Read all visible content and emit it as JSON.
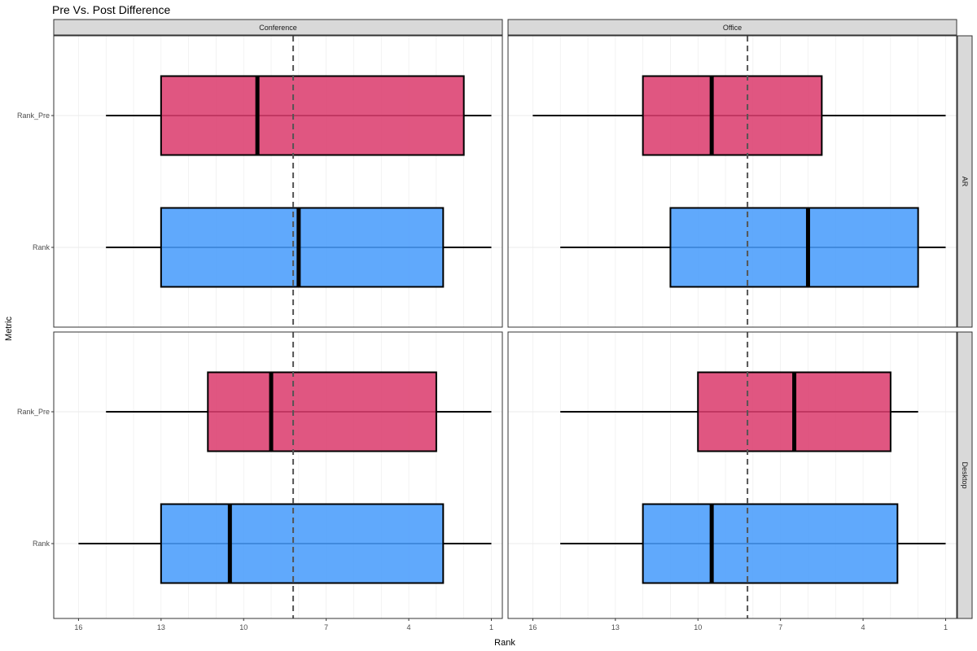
{
  "chart_data": {
    "type": "boxplot",
    "title": "Pre Vs. Post Difference",
    "xlabel": "Rank",
    "ylabel": "Metric",
    "x_reversed": true,
    "xlim": [
      16.9,
      0.6
    ],
    "x_ticks": [
      16,
      13,
      10,
      7,
      4,
      1
    ],
    "y_categories": [
      "Rank_Pre",
      "Rank"
    ],
    "reference_line": {
      "x": 8.2,
      "style": "dashed",
      "color": "#555555"
    },
    "column_facets": [
      "Conference",
      "Office"
    ],
    "row_facets": [
      "AR",
      "Desktop"
    ],
    "colors": {
      "Rank_Pre": "#dc3f6f",
      "Rank": "#4a9dfc",
      "strip_bg": "#d9d9d9",
      "grid": "#ebebeb"
    },
    "panels": [
      {
        "col": "Conference",
        "row": "AR",
        "boxes": [
          {
            "category": "Rank_Pre",
            "min": 1,
            "q1": 2.0,
            "median": 9.5,
            "q3": 13,
            "max": 15
          },
          {
            "category": "Rank",
            "min": 1,
            "q1": 2.75,
            "median": 8,
            "q3": 13,
            "max": 15
          }
        ]
      },
      {
        "col": "Office",
        "row": "AR",
        "boxes": [
          {
            "category": "Rank_Pre",
            "min": 1,
            "q1": 5.5,
            "median": 9.5,
            "q3": 12,
            "max": 16
          },
          {
            "category": "Rank",
            "min": 1,
            "q1": 2.0,
            "median": 6,
            "q3": 11,
            "max": 15
          }
        ]
      },
      {
        "col": "Conference",
        "row": "Desktop",
        "boxes": [
          {
            "category": "Rank_Pre",
            "min": 1,
            "q1": 3.0,
            "median": 9,
            "q3": 11.3,
            "max": 15
          },
          {
            "category": "Rank",
            "min": 1,
            "q1": 2.75,
            "median": 10.5,
            "q3": 13,
            "max": 16
          }
        ]
      },
      {
        "col": "Office",
        "row": "Desktop",
        "boxes": [
          {
            "category": "Rank_Pre",
            "min": 2,
            "q1": 3.0,
            "median": 6.5,
            "q3": 10,
            "max": 15
          },
          {
            "category": "Rank",
            "min": 1,
            "q1": 2.75,
            "median": 9.5,
            "q3": 12,
            "max": 15
          }
        ]
      }
    ]
  }
}
